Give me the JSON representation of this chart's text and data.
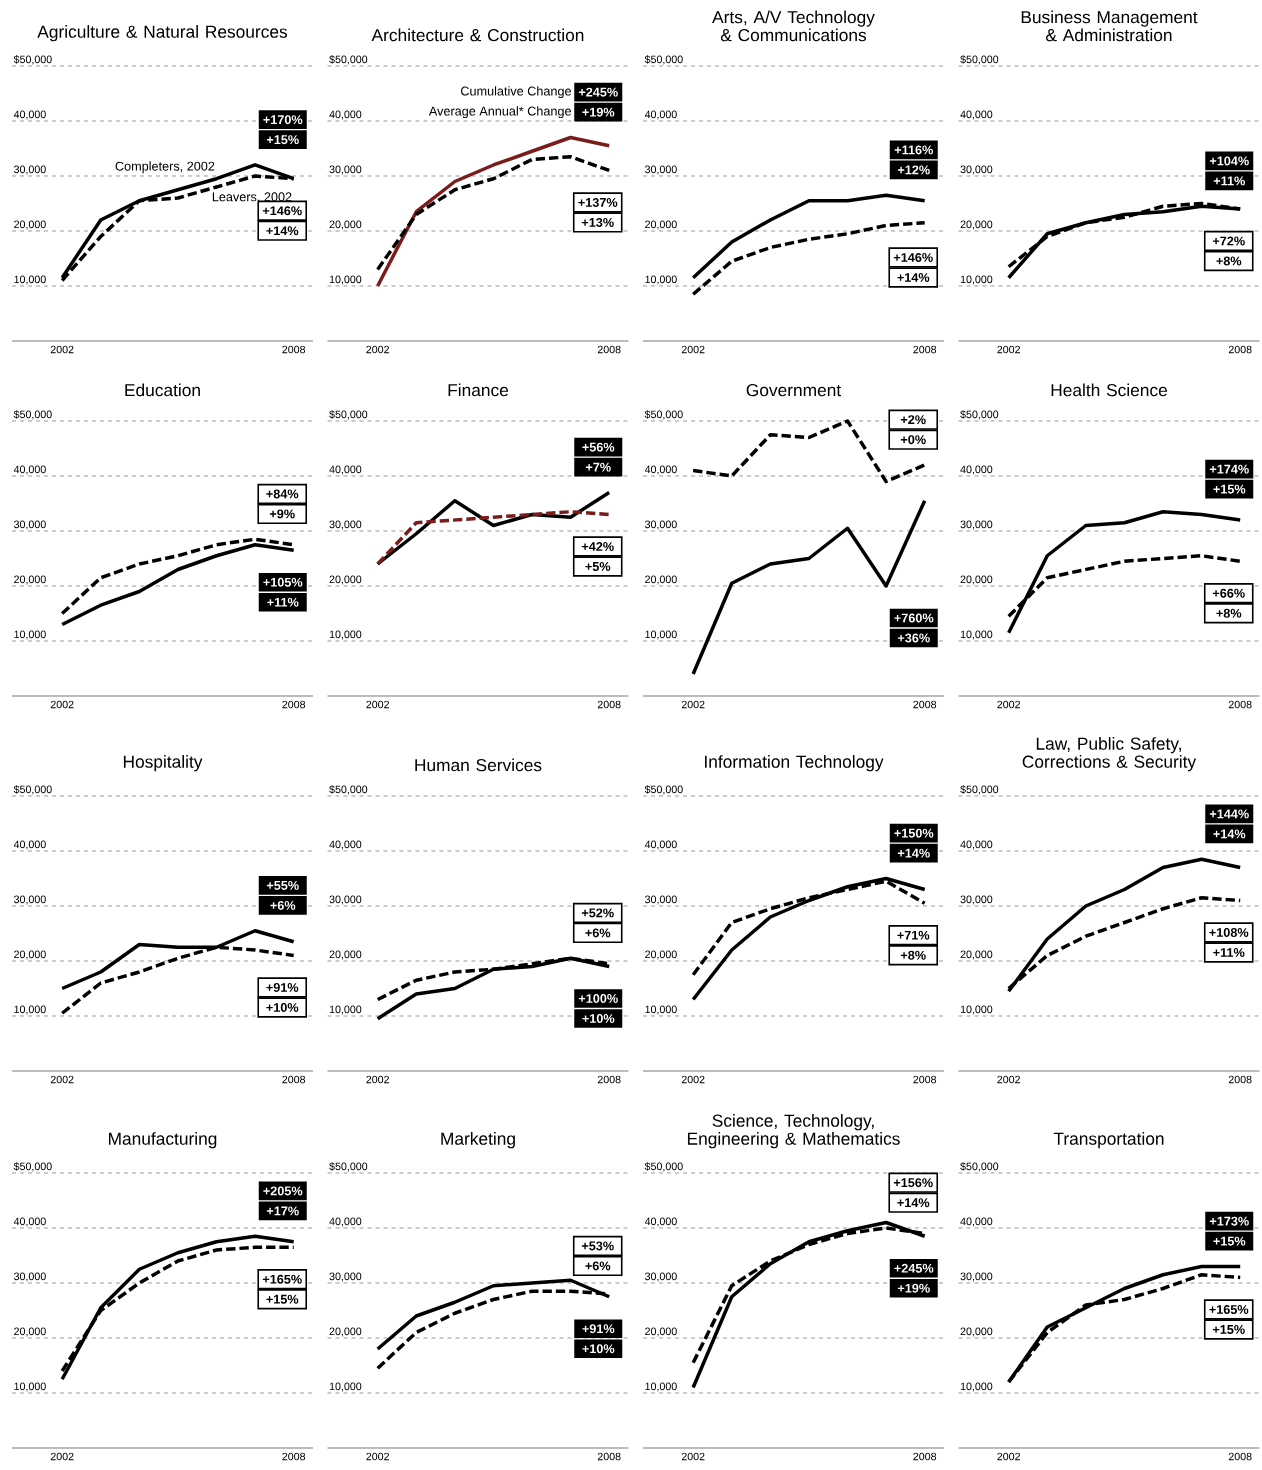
{
  "chart_data": [
    {
      "type": "line",
      "title": "Agriculture & Natural Resources",
      "x": [
        2002,
        2003,
        2004,
        2005,
        2006,
        2007,
        2008
      ],
      "xlim": [
        2000.7,
        2008.5
      ],
      "xticks": [
        2002,
        2008
      ],
      "ylim": [
        0,
        50000
      ],
      "yticks": [
        {
          "value": 10000,
          "label": "10,000"
        },
        {
          "value": 20000,
          "label": "20,000"
        },
        {
          "value": 30000,
          "label": "30,000"
        },
        {
          "value": 40000,
          "label": "40,000"
        },
        {
          "value": 50000,
          "label": "$50,000"
        }
      ],
      "grid": "y",
      "series": [
        {
          "name": "Completers, 2002",
          "color": "#000000",
          "line_style": "solid",
          "values": [
            11500,
            22000,
            25500,
            27500,
            29500,
            32000,
            29500
          ]
        },
        {
          "name": "Leavers, 2002",
          "color": "#000000",
          "line_style": "dashed",
          "values": [
            11000,
            19000,
            25500,
            26000,
            28000,
            30000,
            29500
          ]
        }
      ],
      "annotations": [
        "+170%",
        "+15%",
        "+146%",
        "+14%"
      ]
    },
    {
      "type": "line",
      "title": "Architecture & Construction",
      "x": [
        2002,
        2003,
        2004,
        2005,
        2006,
        2007,
        2008
      ],
      "xlim": [
        2000.7,
        2008.5
      ],
      "xticks": [
        2002,
        2008
      ],
      "ylim": [
        0,
        50000
      ],
      "yticks": [
        {
          "value": 10000,
          "label": "10,000"
        },
        {
          "value": 20000,
          "label": "20,000"
        },
        {
          "value": 30000,
          "label": "30,000"
        },
        {
          "value": 40000,
          "label": "40,000"
        },
        {
          "value": 50000,
          "label": "$50,000"
        }
      ],
      "grid": "y",
      "series": [
        {
          "color": "#7b1c1c",
          "line_style": "solid",
          "values": [
            10000,
            23500,
            29000,
            32000,
            34500,
            37000,
            35500
          ]
        },
        {
          "color": "#000000",
          "line_style": "dashed",
          "values": [
            13000,
            23000,
            27500,
            29500,
            33000,
            33500,
            31000
          ]
        }
      ],
      "annotations": [
        "+245%",
        "+19%",
        "+137%",
        "+13%",
        "Cumulative Change",
        "Average Annual* Change"
      ]
    },
    {
      "type": "line",
      "title": "Arts, A/V Technology & Communications",
      "x": [
        2002,
        2003,
        2004,
        2005,
        2006,
        2007,
        2008
      ],
      "xlim": [
        2000.7,
        2008.5
      ],
      "xticks": [
        2002,
        2008
      ],
      "ylim": [
        0,
        50000
      ],
      "yticks": [
        {
          "value": 10000,
          "label": "10,000"
        },
        {
          "value": 20000,
          "label": "20,000"
        },
        {
          "value": 30000,
          "label": "30,000"
        },
        {
          "value": 40000,
          "label": "40,000"
        },
        {
          "value": 50000,
          "label": "$50,000"
        }
      ],
      "grid": "y",
      "series": [
        {
          "color": "#000000",
          "line_style": "solid",
          "values": [
            11500,
            18000,
            22000,
            25500,
            25500,
            26500,
            25500
          ]
        },
        {
          "color": "#000000",
          "line_style": "dashed",
          "values": [
            8500,
            14500,
            17000,
            18500,
            19500,
            21000,
            21500
          ]
        }
      ],
      "annotations": [
        "+116%",
        "+12%",
        "+146%",
        "+14%"
      ]
    },
    {
      "type": "line",
      "title": "Business Management & Administration",
      "x": [
        2002,
        2003,
        2004,
        2005,
        2006,
        2007,
        2008
      ],
      "xlim": [
        2000.7,
        2008.5
      ],
      "xticks": [
        2002,
        2008
      ],
      "ylim": [
        0,
        50000
      ],
      "yticks": [
        {
          "value": 10000,
          "label": "10,000"
        },
        {
          "value": 20000,
          "label": "20,000"
        },
        {
          "value": 30000,
          "label": "30,000"
        },
        {
          "value": 40000,
          "label": "40,000"
        },
        {
          "value": 50000,
          "label": "$50,000"
        }
      ],
      "grid": "y",
      "series": [
        {
          "color": "#000000",
          "line_style": "solid",
          "values": [
            11500,
            19500,
            21500,
            23000,
            23500,
            24500,
            24000
          ]
        },
        {
          "color": "#000000",
          "line_style": "dashed",
          "values": [
            13500,
            19000,
            21500,
            22500,
            24500,
            25000,
            24000
          ]
        }
      ],
      "annotations": [
        "+104%",
        "+11%",
        "+72%",
        "+8%"
      ]
    },
    {
      "type": "line",
      "title": "Education",
      "x": [
        2002,
        2003,
        2004,
        2005,
        2006,
        2007,
        2008
      ],
      "xlim": [
        2000.7,
        2008.5
      ],
      "xticks": [
        2002,
        2008
      ],
      "ylim": [
        0,
        50000
      ],
      "yticks": [
        {
          "value": 10000,
          "label": "10,000"
        },
        {
          "value": 20000,
          "label": "20,000"
        },
        {
          "value": 30000,
          "label": "30,000"
        },
        {
          "value": 40000,
          "label": "40,000"
        },
        {
          "value": 50000,
          "label": "$50,000"
        }
      ],
      "grid": "y",
      "series": [
        {
          "color": "#000000",
          "line_style": "solid",
          "values": [
            13000,
            16500,
            19000,
            23000,
            25500,
            27500,
            26500
          ]
        },
        {
          "color": "#000000",
          "line_style": "dashed",
          "values": [
            15000,
            21500,
            24000,
            25500,
            27500,
            28500,
            27500
          ]
        }
      ],
      "annotations": [
        "+105%",
        "+11%",
        "+84%",
        "+9%"
      ]
    },
    {
      "type": "line",
      "title": "Finance",
      "x": [
        2002,
        2003,
        2004,
        2005,
        2006,
        2007,
        2008
      ],
      "xlim": [
        2000.7,
        2008.5
      ],
      "xticks": [
        2002,
        2008
      ],
      "ylim": [
        0,
        50000
      ],
      "yticks": [
        {
          "value": 10000,
          "label": "10,000"
        },
        {
          "value": 20000,
          "label": "20,000"
        },
        {
          "value": 30000,
          "label": "30,000"
        },
        {
          "value": 40000,
          "label": "40,000"
        },
        {
          "value": 50000,
          "label": "$50,000"
        }
      ],
      "grid": "y",
      "series": [
        {
          "color": "#000000",
          "line_style": "solid",
          "values": [
            24000,
            29500,
            35500,
            31000,
            33000,
            32500,
            37000
          ]
        },
        {
          "color": "#7b1c1c",
          "line_style": "dashed",
          "values": [
            24000,
            31500,
            32000,
            32500,
            33000,
            33500,
            33000
          ]
        }
      ],
      "annotations": [
        "+56%",
        "+7%",
        "+42%",
        "+5%"
      ]
    },
    {
      "type": "line",
      "title": "Government",
      "x": [
        2002,
        2003,
        2004,
        2005,
        2006,
        2007,
        2008
      ],
      "xlim": [
        2000.7,
        2008.5
      ],
      "xticks": [
        2002,
        2008
      ],
      "ylim": [
        0,
        50000
      ],
      "yticks": [
        {
          "value": 10000,
          "label": "10,000"
        },
        {
          "value": 20000,
          "label": "20,000"
        },
        {
          "value": 30000,
          "label": "30,000"
        },
        {
          "value": 40000,
          "label": "40,000"
        },
        {
          "value": 50000,
          "label": "$50,000"
        }
      ],
      "grid": "y",
      "series": [
        {
          "color": "#000000",
          "line_style": "solid",
          "values": [
            4000,
            20500,
            24000,
            25000,
            30500,
            20000,
            35500
          ]
        },
        {
          "color": "#000000",
          "line_style": "dashed",
          "values": [
            41000,
            40000,
            47500,
            47000,
            50000,
            39000,
            42000
          ]
        }
      ],
      "annotations": [
        "+760%",
        "+36%",
        "+2%",
        "+0%"
      ]
    },
    {
      "type": "line",
      "title": "Health Science",
      "x": [
        2002,
        2003,
        2004,
        2005,
        2006,
        2007,
        2008
      ],
      "xlim": [
        2000.7,
        2008.5
      ],
      "xticks": [
        2002,
        2008
      ],
      "ylim": [
        0,
        50000
      ],
      "yticks": [
        {
          "value": 10000,
          "label": "10,000"
        },
        {
          "value": 20000,
          "label": "20,000"
        },
        {
          "value": 30000,
          "label": "30,000"
        },
        {
          "value": 40000,
          "label": "40,000"
        },
        {
          "value": 50000,
          "label": "$50,000"
        }
      ],
      "grid": "y",
      "series": [
        {
          "color": "#000000",
          "line_style": "solid",
          "values": [
            11500,
            25500,
            31000,
            31500,
            33500,
            33000,
            32000
          ]
        },
        {
          "color": "#000000",
          "line_style": "dashed",
          "values": [
            14500,
            21500,
            23000,
            24500,
            25000,
            25500,
            24500
          ]
        }
      ],
      "annotations": [
        "+174%",
        "+15%",
        "+66%",
        "+8%"
      ]
    },
    {
      "type": "line",
      "title": "Hospitality",
      "x": [
        2002,
        2003,
        2004,
        2005,
        2006,
        2007,
        2008
      ],
      "xlim": [
        2000.7,
        2008.5
      ],
      "xticks": [
        2002,
        2008
      ],
      "ylim": [
        0,
        50000
      ],
      "yticks": [
        {
          "value": 10000,
          "label": "10,000"
        },
        {
          "value": 20000,
          "label": "20,000"
        },
        {
          "value": 30000,
          "label": "30,000"
        },
        {
          "value": 40000,
          "label": "40,000"
        },
        {
          "value": 50000,
          "label": "$50,000"
        }
      ],
      "grid": "y",
      "series": [
        {
          "color": "#000000",
          "line_style": "solid",
          "values": [
            15000,
            18000,
            23000,
            22500,
            22500,
            25500,
            23500
          ]
        },
        {
          "color": "#000000",
          "line_style": "dashed",
          "values": [
            10500,
            16000,
            18000,
            20500,
            22500,
            22000,
            21000
          ]
        }
      ],
      "annotations": [
        "+55%",
        "+6%",
        "+91%",
        "+10%"
      ]
    },
    {
      "type": "line",
      "title": "Human Services",
      "x": [
        2002,
        2003,
        2004,
        2005,
        2006,
        2007,
        2008
      ],
      "xlim": [
        2000.7,
        2008.5
      ],
      "xticks": [
        2002,
        2008
      ],
      "ylim": [
        0,
        50000
      ],
      "yticks": [
        {
          "value": 10000,
          "label": "10,000"
        },
        {
          "value": 20000,
          "label": "20,000"
        },
        {
          "value": 30000,
          "label": "30,000"
        },
        {
          "value": 40000,
          "label": "40,000"
        },
        {
          "value": 50000,
          "label": "$50,000"
        }
      ],
      "grid": "y",
      "series": [
        {
          "color": "#000000",
          "line_style": "solid",
          "values": [
            9500,
            14000,
            15000,
            18500,
            19000,
            20500,
            19000
          ]
        },
        {
          "color": "#000000",
          "line_style": "dashed",
          "values": [
            13000,
            16500,
            18000,
            18500,
            19500,
            20500,
            19500
          ]
        }
      ],
      "annotations": [
        "+100%",
        "+10%",
        "+52%",
        "+6%"
      ]
    },
    {
      "type": "line",
      "title": "Information Technology",
      "x": [
        2002,
        2003,
        2004,
        2005,
        2006,
        2007,
        2008
      ],
      "xlim": [
        2000.7,
        2008.5
      ],
      "xticks": [
        2002,
        2008
      ],
      "ylim": [
        0,
        50000
      ],
      "yticks": [
        {
          "value": 10000,
          "label": "10,000"
        },
        {
          "value": 20000,
          "label": "20,000"
        },
        {
          "value": 30000,
          "label": "30,000"
        },
        {
          "value": 40000,
          "label": "40,000"
        },
        {
          "value": 50000,
          "label": "$50,000"
        }
      ],
      "grid": "y",
      "series": [
        {
          "color": "#000000",
          "line_style": "solid",
          "values": [
            13000,
            22000,
            28000,
            31000,
            33500,
            35000,
            33000
          ]
        },
        {
          "color": "#000000",
          "line_style": "dashed",
          "values": [
            17500,
            27000,
            29500,
            31500,
            33000,
            34500,
            30500
          ]
        }
      ],
      "annotations": [
        "+150%",
        "+14%",
        "+71%",
        "+8%"
      ]
    },
    {
      "type": "line",
      "title": "Law, Public Safety, Corrections & Security",
      "x": [
        2002,
        2003,
        2004,
        2005,
        2006,
        2007,
        2008
      ],
      "xlim": [
        2000.7,
        2008.5
      ],
      "xticks": [
        2002,
        2008
      ],
      "ylim": [
        0,
        50000
      ],
      "yticks": [
        {
          "value": 10000,
          "label": "10,000"
        },
        {
          "value": 20000,
          "label": "20,000"
        },
        {
          "value": 30000,
          "label": "30,000"
        },
        {
          "value": 40000,
          "label": "40,000"
        },
        {
          "value": 50000,
          "label": "$50,000"
        }
      ],
      "grid": "y",
      "series": [
        {
          "color": "#000000",
          "line_style": "solid",
          "values": [
            14500,
            24000,
            30000,
            33000,
            37000,
            38500,
            37000
          ]
        },
        {
          "color": "#000000",
          "line_style": "dashed",
          "values": [
            15000,
            21000,
            24500,
            27000,
            29500,
            31500,
            31000
          ]
        }
      ],
      "annotations": [
        "+144%",
        "+14%",
        "+108%",
        "+11%"
      ]
    },
    {
      "type": "line",
      "title": "Manufacturing",
      "x": [
        2002,
        2003,
        2004,
        2005,
        2006,
        2007,
        2008
      ],
      "xlim": [
        2000.7,
        2008.5
      ],
      "xticks": [
        2002,
        2008
      ],
      "ylim": [
        0,
        50000
      ],
      "yticks": [
        {
          "value": 10000,
          "label": "10,000"
        },
        {
          "value": 20000,
          "label": "20,000"
        },
        {
          "value": 30000,
          "label": "30,000"
        },
        {
          "value": 40000,
          "label": "40,000"
        },
        {
          "value": 50000,
          "label": "$50,000"
        }
      ],
      "grid": "y",
      "series": [
        {
          "color": "#000000",
          "line_style": "solid",
          "values": [
            12500,
            25500,
            32500,
            35500,
            37500,
            38500,
            37500
          ]
        },
        {
          "color": "#000000",
          "line_style": "dashed",
          "values": [
            14000,
            25000,
            30000,
            34000,
            36000,
            36500,
            36500
          ]
        }
      ],
      "annotations": [
        "+205%",
        "+17%",
        "+165%",
        "+15%"
      ]
    },
    {
      "type": "line",
      "title": "Marketing",
      "x": [
        2002,
        2003,
        2004,
        2005,
        2006,
        2007,
        2008
      ],
      "xlim": [
        2000.7,
        2008.5
      ],
      "xticks": [
        2002,
        2008
      ],
      "ylim": [
        0,
        50000
      ],
      "yticks": [
        {
          "value": 10000,
          "label": "10,000"
        },
        {
          "value": 20000,
          "label": "20,000"
        },
        {
          "value": 30000,
          "label": "30,000"
        },
        {
          "value": 40000,
          "label": "40,000"
        },
        {
          "value": 50000,
          "label": "$50,000"
        }
      ],
      "grid": "y",
      "series": [
        {
          "color": "#000000",
          "line_style": "solid",
          "values": [
            18000,
            24000,
            26500,
            29500,
            30000,
            30500,
            27500
          ]
        },
        {
          "color": "#000000",
          "line_style": "dashed",
          "values": [
            14500,
            21000,
            24500,
            27000,
            28500,
            28500,
            28000
          ]
        }
      ],
      "annotations": [
        "+91%",
        "+10%",
        "+53%",
        "+6%"
      ]
    },
    {
      "type": "line",
      "title": "Science, Technology, Engineering & Mathematics",
      "x": [
        2002,
        2003,
        2004,
        2005,
        2006,
        2007,
        2008
      ],
      "xlim": [
        2000.7,
        2008.5
      ],
      "xticks": [
        2002,
        2008
      ],
      "ylim": [
        0,
        50000
      ],
      "yticks": [
        {
          "value": 10000,
          "label": "10,000"
        },
        {
          "value": 20000,
          "label": "20,000"
        },
        {
          "value": 30000,
          "label": "30,000"
        },
        {
          "value": 40000,
          "label": "40,000"
        },
        {
          "value": 50000,
          "label": "$50,000"
        }
      ],
      "grid": "y",
      "series": [
        {
          "color": "#000000",
          "line_style": "solid",
          "values": [
            11000,
            27500,
            33500,
            37500,
            39500,
            41000,
            38500
          ]
        },
        {
          "color": "#000000",
          "line_style": "dashed",
          "values": [
            15500,
            29500,
            34000,
            37000,
            39000,
            40000,
            39000
          ]
        }
      ],
      "annotations": [
        "+245%",
        "+19%",
        "+156%",
        "+14%"
      ]
    },
    {
      "type": "line",
      "title": "Transportation",
      "x": [
        2002,
        2003,
        2004,
        2005,
        2006,
        2007,
        2008
      ],
      "xlim": [
        2000.7,
        2008.5
      ],
      "xticks": [
        2002,
        2008
      ],
      "ylim": [
        0,
        50000
      ],
      "yticks": [
        {
          "value": 10000,
          "label": "10,000"
        },
        {
          "value": 20000,
          "label": "20,000"
        },
        {
          "value": 30000,
          "label": "30,000"
        },
        {
          "value": 40000,
          "label": "40,000"
        },
        {
          "value": 50000,
          "label": "$50,000"
        }
      ],
      "grid": "y",
      "series": [
        {
          "color": "#000000",
          "line_style": "solid",
          "values": [
            12000,
            22000,
            25500,
            29000,
            31500,
            33000,
            33000
          ]
        },
        {
          "color": "#000000",
          "line_style": "dashed",
          "values": [
            12000,
            21000,
            26000,
            27000,
            29000,
            31500,
            31000
          ]
        }
      ],
      "annotations": [
        "+173%",
        "+15%",
        "+165%",
        "+15%"
      ]
    }
  ]
}
